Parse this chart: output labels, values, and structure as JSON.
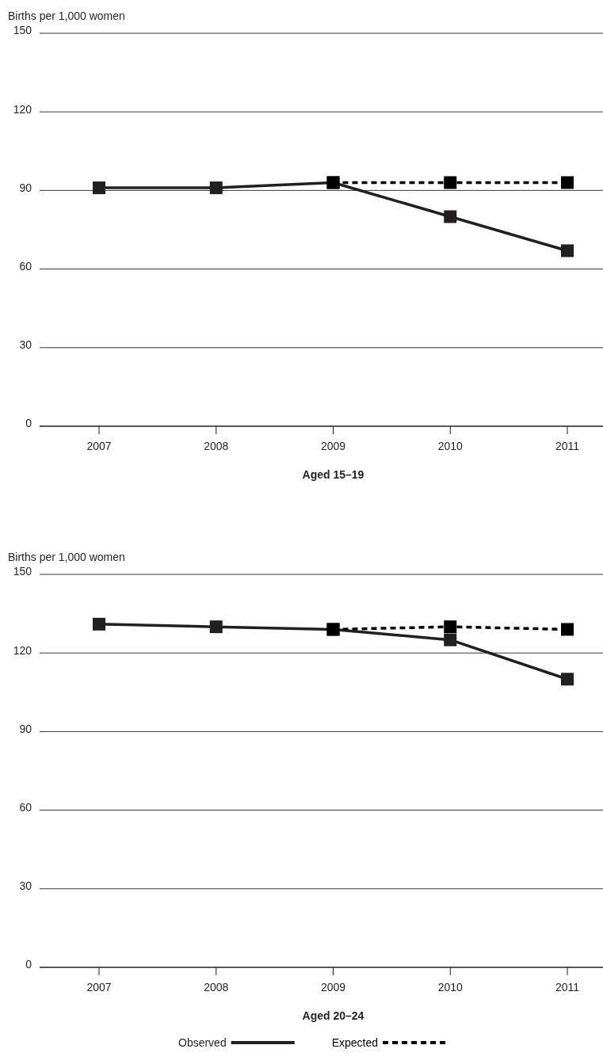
{
  "chart_data": [
    {
      "type": "line",
      "title": "Aged 15–19",
      "ylabel": "Births per 1,000 women",
      "categories": [
        "2007",
        "2008",
        "2009",
        "2010",
        "2011"
      ],
      "ylim": [
        0,
        150
      ],
      "yticks": [
        0,
        30,
        60,
        90,
        120,
        150
      ],
      "grid": "y",
      "marker": "square",
      "series": [
        {
          "color": "#231f20",
          "line_style": "solid",
          "values": [
            91,
            91,
            93,
            80,
            67
          ]
        },
        {
          "color": "#000000",
          "line_style": "dashed",
          "values": [
            null,
            null,
            93,
            93,
            93
          ]
        }
      ]
    },
    {
      "type": "line",
      "title": "Aged 20–24",
      "ylabel": "Births per 1,000 women",
      "categories": [
        "2007",
        "2008",
        "2009",
        "2010",
        "2011"
      ],
      "ylim": [
        0,
        150
      ],
      "yticks": [
        0,
        30,
        60,
        90,
        120,
        150
      ],
      "grid": "y",
      "marker": "square",
      "legend": "bottom",
      "series": [
        {
          "name": "Observed",
          "color": "#231f20",
          "line_style": "solid",
          "values": [
            131,
            130,
            129,
            125,
            110
          ]
        },
        {
          "name": "Expected",
          "color": "#000000",
          "line_style": "dashed",
          "values": [
            null,
            null,
            129,
            130,
            129
          ]
        }
      ]
    }
  ]
}
